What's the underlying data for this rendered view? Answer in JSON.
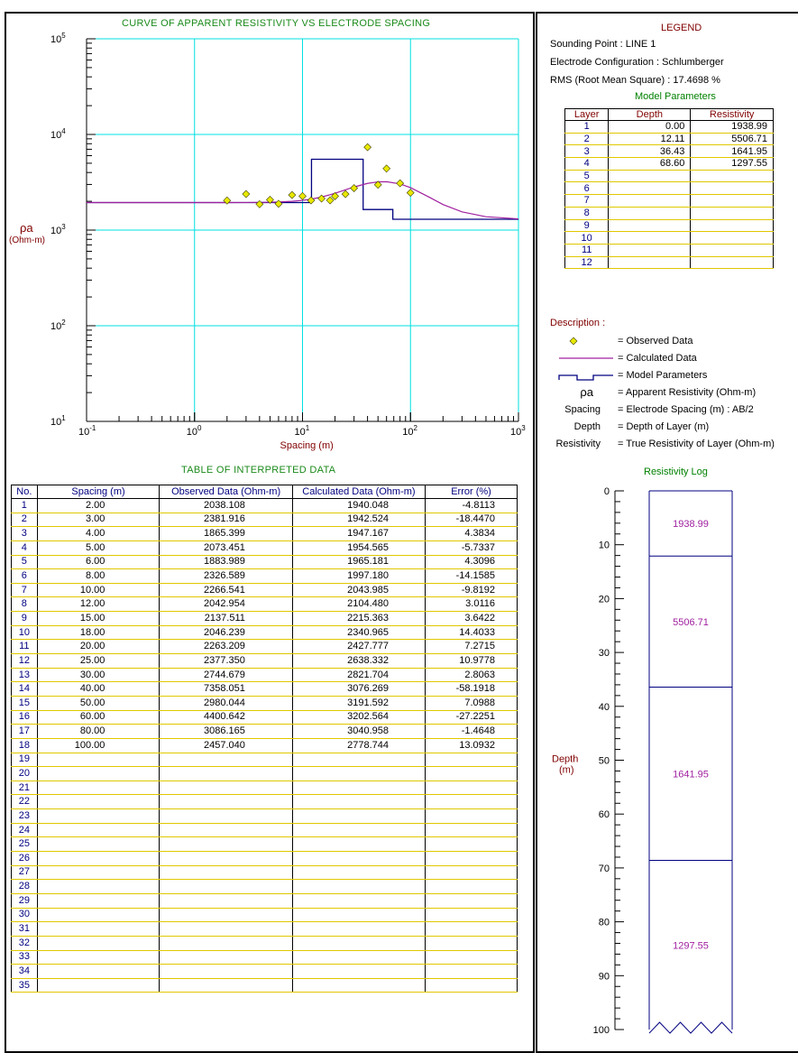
{
  "chart_data": [
    {
      "type": "scatter",
      "title": "CURVE OF APPARENT RESISTIVITY VS ELECTRODE SPACING",
      "xlabel": "Spacing (m)",
      "ylabel": "ρa",
      "ylabel_unit": "(Ohm-m)",
      "x_scale": "log",
      "y_scale": "log",
      "xlim": [
        0.1,
        1000
      ],
      "ylim": [
        10,
        100000
      ],
      "x_tick_labels": [
        {
          "base": "10",
          "exp": "-1"
        },
        {
          "base": "10",
          "exp": "0"
        },
        {
          "base": "10",
          "exp": "1"
        },
        {
          "base": "10",
          "exp": "2"
        },
        {
          "base": "10",
          "exp": "3"
        }
      ],
      "y_tick_labels": [
        {
          "base": "10",
          "exp": "1"
        },
        {
          "base": "10",
          "exp": "2"
        },
        {
          "base": "10",
          "exp": "3"
        },
        {
          "base": "10",
          "exp": "4"
        },
        {
          "base": "10",
          "exp": "5"
        }
      ],
      "grid": true,
      "grid_color": "#00e0e0",
      "observed": {
        "x": [
          2,
          3,
          4,
          5,
          6,
          8,
          10,
          12,
          15,
          18,
          20,
          25,
          30,
          40,
          50,
          60,
          80,
          100
        ],
        "y": [
          2038.108,
          2381.916,
          1865.399,
          2073.451,
          1883.989,
          2326.589,
          2266.541,
          2042.954,
          2137.511,
          2046.239,
          2263.209,
          2377.35,
          2744.679,
          7358.051,
          2980.044,
          4400.642,
          3086.165,
          2457.04
        ],
        "color": "#e8e800"
      },
      "calculated": {
        "x": [
          0.1,
          1,
          2,
          3,
          4,
          5,
          6,
          8,
          10,
          12,
          15,
          18,
          20,
          25,
          30,
          40,
          50,
          60,
          80,
          100,
          150,
          200,
          300,
          500,
          1000
        ],
        "y": [
          1939,
          1939,
          1940,
          1942,
          1947,
          1955,
          1965,
          1997,
          2044,
          2104,
          2215,
          2341,
          2428,
          2638,
          2822,
          3076,
          3192,
          3203,
          3041,
          2779,
          2200,
          1850,
          1550,
          1380,
          1310
        ],
        "color": "#a020a0"
      },
      "model": {
        "depths": [
          0.0,
          12.11,
          36.43,
          68.6
        ],
        "resistivities": [
          1938.99,
          5506.71,
          1641.95,
          1297.55
        ],
        "color": "#000080"
      }
    },
    {
      "type": "bar",
      "title": "Resistivity Log",
      "ylabel": "Depth",
      "ylabel_unit": "(m)",
      "ylim": [
        0,
        100
      ],
      "y_ticks": [
        0,
        10,
        20,
        30,
        40,
        50,
        60,
        70,
        80,
        90,
        100
      ],
      "layers": [
        {
          "top": 0.0,
          "bottom": 12.11,
          "resistivity": "1938.99"
        },
        {
          "top": 12.11,
          "bottom": 36.43,
          "resistivity": "5506.71"
        },
        {
          "top": 36.43,
          "bottom": 68.6,
          "resistivity": "1641.95"
        },
        {
          "top": 68.6,
          "bottom": 100,
          "resistivity": "1297.55"
        }
      ]
    }
  ],
  "table": {
    "title": "TABLE OF INTERPRETED DATA",
    "headers": [
      "No.",
      "Spacing (m)",
      "Observed Data (Ohm-m)",
      "Calculated Data (Ohm-m)",
      "Error (%)"
    ],
    "rows": [
      [
        "1",
        "2.00",
        "2038.108",
        "1940.048",
        "-4.8113"
      ],
      [
        "2",
        "3.00",
        "2381.916",
        "1942.524",
        "-18.4470"
      ],
      [
        "3",
        "4.00",
        "1865.399",
        "1947.167",
        "4.3834"
      ],
      [
        "4",
        "5.00",
        "2073.451",
        "1954.565",
        "-5.7337"
      ],
      [
        "5",
        "6.00",
        "1883.989",
        "1965.181",
        "4.3096"
      ],
      [
        "6",
        "8.00",
        "2326.589",
        "1997.180",
        "-14.1585"
      ],
      [
        "7",
        "10.00",
        "2266.541",
        "2043.985",
        "-9.8192"
      ],
      [
        "8",
        "12.00",
        "2042.954",
        "2104.480",
        "3.0116"
      ],
      [
        "9",
        "15.00",
        "2137.511",
        "2215.363",
        "3.6422"
      ],
      [
        "10",
        "18.00",
        "2046.239",
        "2340.965",
        "14.4033"
      ],
      [
        "11",
        "20.00",
        "2263.209",
        "2427.777",
        "7.2715"
      ],
      [
        "12",
        "25.00",
        "2377.350",
        "2638.332",
        "10.9778"
      ],
      [
        "13",
        "30.00",
        "2744.679",
        "2821.704",
        "2.8063"
      ],
      [
        "14",
        "40.00",
        "7358.051",
        "3076.269",
        "-58.1918"
      ],
      [
        "15",
        "50.00",
        "2980.044",
        "3191.592",
        "7.0988"
      ],
      [
        "16",
        "60.00",
        "4400.642",
        "3202.564",
        "-27.2251"
      ],
      [
        "17",
        "80.00",
        "3086.165",
        "3040.958",
        "-1.4648"
      ],
      [
        "18",
        "100.00",
        "2457.040",
        "2778.744",
        "13.0932"
      ],
      [
        "19",
        "",
        "",
        "",
        ""
      ],
      [
        "20",
        "",
        "",
        "",
        ""
      ],
      [
        "21",
        "",
        "",
        "",
        ""
      ],
      [
        "22",
        "",
        "",
        "",
        ""
      ],
      [
        "23",
        "",
        "",
        "",
        ""
      ],
      [
        "24",
        "",
        "",
        "",
        ""
      ],
      [
        "25",
        "",
        "",
        "",
        ""
      ],
      [
        "26",
        "",
        "",
        "",
        ""
      ],
      [
        "27",
        "",
        "",
        "",
        ""
      ],
      [
        "28",
        "",
        "",
        "",
        ""
      ],
      [
        "29",
        "",
        "",
        "",
        ""
      ],
      [
        "30",
        "",
        "",
        "",
        ""
      ],
      [
        "31",
        "",
        "",
        "",
        ""
      ],
      [
        "32",
        "",
        "",
        "",
        ""
      ],
      [
        "33",
        "",
        "",
        "",
        ""
      ],
      [
        "34",
        "",
        "",
        "",
        ""
      ],
      [
        "35",
        "",
        "",
        "",
        ""
      ]
    ]
  },
  "legend": {
    "title": "LEGEND",
    "sounding_point": "Sounding Point  :  LINE 1",
    "configuration": "Electrode Configuration  :  Schlumberger",
    "rms": "RMS (Root Mean Square)  :  17.4698 %",
    "model_params_title": "Model Parameters",
    "param_headers": [
      "Layer",
      "Depth",
      "Resistivity"
    ],
    "param_rows": [
      [
        "1",
        "0.00",
        "1938.99"
      ],
      [
        "2",
        "12.11",
        "5506.71"
      ],
      [
        "3",
        "36.43",
        "1641.95"
      ],
      [
        "4",
        "68.60",
        "1297.55"
      ],
      [
        "5",
        "",
        ""
      ],
      [
        "6",
        "",
        ""
      ],
      [
        "7",
        "",
        ""
      ],
      [
        "8",
        "",
        ""
      ],
      [
        "9",
        "",
        ""
      ],
      [
        "10",
        "",
        ""
      ],
      [
        "11",
        "",
        ""
      ],
      [
        "12",
        "",
        ""
      ]
    ],
    "description_label": "Description  :",
    "items": [
      {
        "key": "",
        "text": "=  Observed Data"
      },
      {
        "key": "",
        "text": "=  Calculated Data"
      },
      {
        "key": "",
        "text": "=  Model Parameters"
      },
      {
        "key": "ρa",
        "text": "=  Apparent Resistivity (Ohm-m)"
      },
      {
        "key": "Spacing",
        "text": "=  Electrode Spacing (m)  :  AB/2"
      },
      {
        "key": "Depth",
        "text": "=  Depth of Layer (m)"
      },
      {
        "key": "Resistivity",
        "text": "=  True Resistivity of Layer (Ohm-m)"
      }
    ]
  }
}
